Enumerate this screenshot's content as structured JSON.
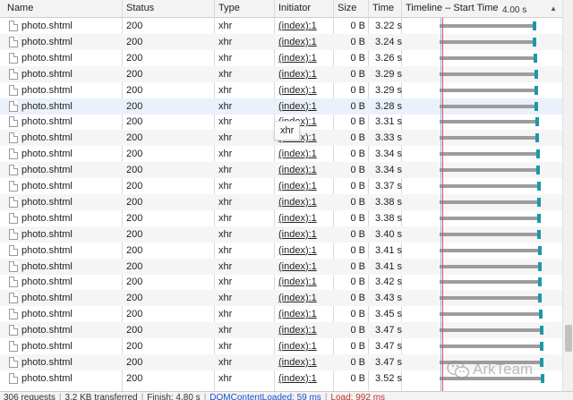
{
  "columns": {
    "name": "Name",
    "status": "Status",
    "type": "Type",
    "initiator": "Initiator",
    "size": "Size",
    "time": "Time",
    "timeline": "Timeline – Start Time",
    "sort_indicator": "▲",
    "scale_label": "4.00 s"
  },
  "rows": [
    {
      "name": "photo.shtml",
      "status": "200",
      "type": "xhr",
      "initiator": "(index):1",
      "size": "0 B",
      "time": "3.22 s",
      "time_value_s": 3.22
    },
    {
      "name": "photo.shtml",
      "status": "200",
      "type": "xhr",
      "initiator": "(index):1",
      "size": "0 B",
      "time": "3.24 s",
      "time_value_s": 3.24
    },
    {
      "name": "photo.shtml",
      "status": "200",
      "type": "xhr",
      "initiator": "(index):1",
      "size": "0 B",
      "time": "3.26 s",
      "time_value_s": 3.26
    },
    {
      "name": "photo.shtml",
      "status": "200",
      "type": "xhr",
      "initiator": "(index):1",
      "size": "0 B",
      "time": "3.29 s",
      "time_value_s": 3.29
    },
    {
      "name": "photo.shtml",
      "status": "200",
      "type": "xhr",
      "initiator": "(index):1",
      "size": "0 B",
      "time": "3.29 s",
      "time_value_s": 3.29
    },
    {
      "name": "photo.shtml",
      "status": "200",
      "type": "xhr",
      "initiator": "(index):1",
      "size": "0 B",
      "time": "3.28 s",
      "time_value_s": 3.28
    },
    {
      "name": "photo.shtml",
      "status": "200",
      "type": "xhr",
      "initiator": "(index):1",
      "size": "0 B",
      "time": "3.31 s",
      "time_value_s": 3.31
    },
    {
      "name": "photo.shtml",
      "status": "200",
      "type": "xhr",
      "initiator": "(index):1",
      "size": "0 B",
      "time": "3.33 s",
      "time_value_s": 3.33
    },
    {
      "name": "photo.shtml",
      "status": "200",
      "type": "xhr",
      "initiator": "(index):1",
      "size": "0 B",
      "time": "3.34 s",
      "time_value_s": 3.34
    },
    {
      "name": "photo.shtml",
      "status": "200",
      "type": "xhr",
      "initiator": "(index):1",
      "size": "0 B",
      "time": "3.34 s",
      "time_value_s": 3.34
    },
    {
      "name": "photo.shtml",
      "status": "200",
      "type": "xhr",
      "initiator": "(index):1",
      "size": "0 B",
      "time": "3.37 s",
      "time_value_s": 3.37
    },
    {
      "name": "photo.shtml",
      "status": "200",
      "type": "xhr",
      "initiator": "(index):1",
      "size": "0 B",
      "time": "3.38 s",
      "time_value_s": 3.38
    },
    {
      "name": "photo.shtml",
      "status": "200",
      "type": "xhr",
      "initiator": "(index):1",
      "size": "0 B",
      "time": "3.38 s",
      "time_value_s": 3.38
    },
    {
      "name": "photo.shtml",
      "status": "200",
      "type": "xhr",
      "initiator": "(index):1",
      "size": "0 B",
      "time": "3.40 s",
      "time_value_s": 3.4
    },
    {
      "name": "photo.shtml",
      "status": "200",
      "type": "xhr",
      "initiator": "(index):1",
      "size": "0 B",
      "time": "3.41 s",
      "time_value_s": 3.41
    },
    {
      "name": "photo.shtml",
      "status": "200",
      "type": "xhr",
      "initiator": "(index):1",
      "size": "0 B",
      "time": "3.41 s",
      "time_value_s": 3.41
    },
    {
      "name": "photo.shtml",
      "status": "200",
      "type": "xhr",
      "initiator": "(index):1",
      "size": "0 B",
      "time": "3.42 s",
      "time_value_s": 3.42
    },
    {
      "name": "photo.shtml",
      "status": "200",
      "type": "xhr",
      "initiator": "(index):1",
      "size": "0 B",
      "time": "3.43 s",
      "time_value_s": 3.43
    },
    {
      "name": "photo.shtml",
      "status": "200",
      "type": "xhr",
      "initiator": "(index):1",
      "size": "0 B",
      "time": "3.45 s",
      "time_value_s": 3.45
    },
    {
      "name": "photo.shtml",
      "status": "200",
      "type": "xhr",
      "initiator": "(index):1",
      "size": "0 B",
      "time": "3.47 s",
      "time_value_s": 3.47
    },
    {
      "name": "photo.shtml",
      "status": "200",
      "type": "xhr",
      "initiator": "(index):1",
      "size": "0 B",
      "time": "3.47 s",
      "time_value_s": 3.47
    },
    {
      "name": "photo.shtml",
      "status": "200",
      "type": "xhr",
      "initiator": "(index):1",
      "size": "0 B",
      "time": "3.47 s",
      "time_value_s": 3.47
    },
    {
      "name": "photo.shtml",
      "status": "200",
      "type": "xhr",
      "initiator": "(index):1",
      "size": "0 B",
      "time": "3.52 s",
      "time_value_s": 3.52
    }
  ],
  "highlighted_row_index": 5,
  "tooltip": {
    "text": "xhr"
  },
  "status_bar": {
    "requests": "306 requests",
    "transferred": "3.2 KB transferred",
    "finish": "Finish: 4.80 s",
    "dom_content_loaded": "DOMContentLoaded: 59 ms",
    "load": "Load: 992 ms"
  },
  "watermark": {
    "text": "ArkTeam",
    "icon": "wechat-logo"
  },
  "colors": {
    "bar_gray": "#9c9c9c",
    "bar_end_teal": "#1a9aa7",
    "load_line_red": "#e05050",
    "dcl_line_blue": "#7a8cd6",
    "highlight_row": "#eaf1fb"
  }
}
